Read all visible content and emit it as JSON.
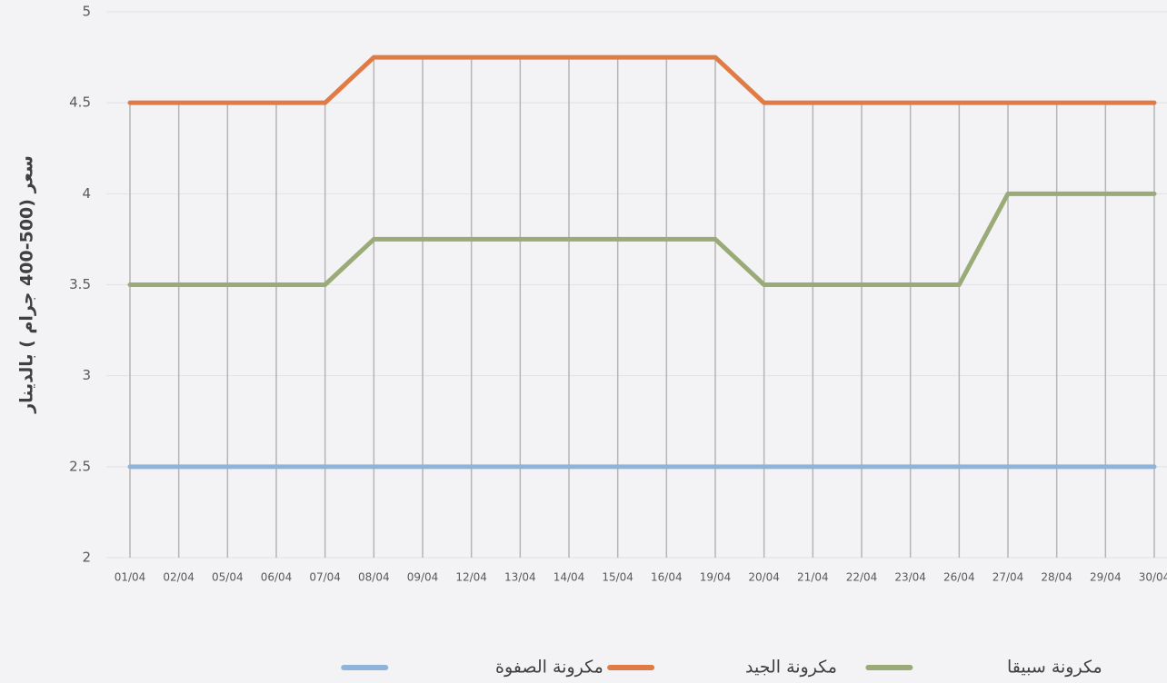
{
  "chart_data": {
    "type": "line",
    "y_label": "سعر (500-400 جرام ) بالدينار",
    "categories": [
      "01/04",
      "02/04",
      "05/04",
      "06/04",
      "07/04",
      "08/04",
      "09/04",
      "12/04",
      "13/04",
      "14/04",
      "15/04",
      "16/04",
      "19/04",
      "20/04",
      "21/04",
      "22/04",
      "23/04",
      "26/04",
      "27/04",
      "28/04",
      "29/04",
      "30/04"
    ],
    "series": [
      {
        "name": "مكرونة سبيقا",
        "color": "#9aab78",
        "values": [
          3.5,
          3.5,
          3.5,
          3.5,
          3.5,
          3.75,
          3.75,
          3.75,
          3.75,
          3.75,
          3.75,
          3.75,
          3.75,
          3.5,
          3.5,
          3.5,
          3.5,
          3.5,
          4,
          4,
          4,
          4
        ]
      },
      {
        "name": "مكرونة الجيد",
        "color": "#e07b45",
        "values": [
          4.5,
          4.5,
          4.5,
          4.5,
          4.5,
          4.75,
          4.75,
          4.75,
          4.75,
          4.75,
          4.75,
          4.75,
          4.75,
          4.5,
          4.5,
          4.5,
          4.5,
          4.5,
          4.5,
          4.5,
          4.5,
          4.5
        ]
      },
      {
        "name": "مكرونة الصفوة",
        "color": "#8fb4dc",
        "values": [
          2.5,
          2.5,
          2.5,
          2.5,
          2.5,
          2.5,
          2.5,
          2.5,
          2.5,
          2.5,
          2.5,
          2.5,
          2.5,
          2.5,
          2.5,
          2.5,
          2.5,
          2.5,
          2.5,
          2.5,
          2.5,
          2.5
        ]
      }
    ],
    "ylim": [
      2,
      5
    ],
    "yticks": [
      2,
      2.5,
      3,
      3.5,
      4,
      4.5,
      5
    ],
    "grid": true,
    "legend": "bottom"
  }
}
